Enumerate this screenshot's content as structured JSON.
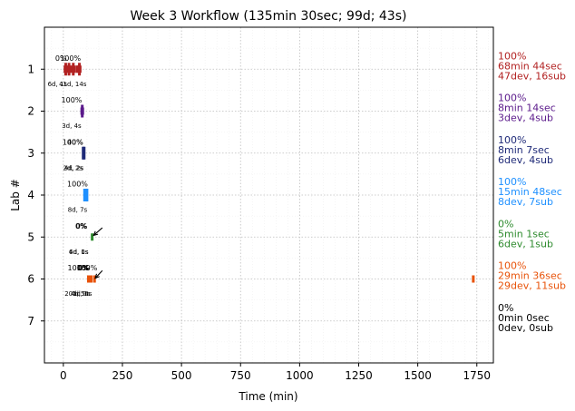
{
  "chart_data": {
    "type": "scatter",
    "title": "Week 3 Workflow (135min 30sec; 99d; 43s)",
    "xlabel": "Time (min)",
    "ylabel": "Lab #",
    "xlim": [
      -80,
      1820
    ],
    "ylim": [
      8,
      0
    ],
    "xticks": [
      0,
      250,
      500,
      750,
      1000,
      1250,
      1500,
      1750
    ],
    "xtick_labels": [
      "0",
      "250",
      "500",
      "750",
      "1000",
      "1250",
      "1500",
      "1750"
    ],
    "yticks": [
      1,
      2,
      3,
      4,
      5,
      6,
      7
    ],
    "ytick_labels": [
      "1",
      "2",
      "3",
      "4",
      "5",
      "6",
      "7"
    ],
    "grid": true,
    "labs": [
      {
        "lab": 1,
        "color": "#b22222",
        "pct": "100%",
        "time": "68min 44sec",
        "counts": "47dev, 16sub",
        "marks": [
          {
            "x": 7,
            "tall": false
          },
          {
            "x": 10,
            "tall": true
          },
          {
            "x": 14,
            "tall": false
          },
          {
            "x": 20,
            "tall": false
          },
          {
            "x": 24,
            "tall": true
          },
          {
            "x": 28,
            "tall": false
          },
          {
            "x": 36,
            "tall": false
          },
          {
            "x": 42,
            "tall": true
          },
          {
            "x": 45,
            "tall": false
          },
          {
            "x": 57,
            "tall": false
          },
          {
            "x": 62,
            "tall": false
          },
          {
            "x": 68,
            "tall": true
          },
          {
            "x": 71,
            "tall": false
          }
        ],
        "annotations": [
          {
            "text": "0%",
            "x": -10,
            "dy": -0.27,
            "kind": "pct"
          },
          {
            "text": "100%",
            "x": 30,
            "dy": -0.27,
            "kind": "pct"
          },
          {
            "text": "6d, 1s",
            "x": -25,
            "dy": 0.36,
            "kind": "small"
          },
          {
            "text": "41d, 14s",
            "x": 40,
            "dy": 0.36,
            "kind": "small"
          }
        ]
      },
      {
        "lab": 2,
        "color": "#5b1a8b",
        "pct": "100%",
        "time": "8min 14sec",
        "counts": "3dev, 4sub",
        "marks": [
          {
            "x": 78,
            "tall": false
          },
          {
            "x": 80,
            "tall": true
          },
          {
            "x": 82,
            "tall": false
          }
        ],
        "annotations": [
          {
            "text": "100%",
            "x": 35,
            "dy": -0.27,
            "kind": "pct"
          },
          {
            "text": "3d, 4s",
            "x": 35,
            "dy": 0.36,
            "kind": "small"
          }
        ]
      },
      {
        "lab": 3,
        "color": "#1f2a78",
        "pct": "100%",
        "time": "8min 7sec",
        "counts": "6dev, 4sub",
        "marks": [
          {
            "x": 84,
            "tall": true
          },
          {
            "x": 86,
            "tall": false
          },
          {
            "x": 88,
            "tall": true
          }
        ],
        "annotations": [
          {
            "text": "100%",
            "x": 40,
            "dy": -0.27,
            "kind": "pct"
          },
          {
            "text": "40%",
            "x": 50,
            "dy": -0.27,
            "kind": "pct"
          },
          {
            "text": "2d, 2s",
            "x": 40,
            "dy": 0.36,
            "kind": "small"
          },
          {
            "text": "4d, 2s",
            "x": 45,
            "dy": 0.36,
            "kind": "small"
          }
        ]
      },
      {
        "lab": 4,
        "color": "#1e90ff",
        "pct": "100%",
        "time": "15min 48sec",
        "counts": "8dev, 7sub",
        "marks": [
          {
            "x": 90,
            "tall": true
          },
          {
            "x": 93,
            "tall": false
          },
          {
            "x": 96,
            "tall": false
          },
          {
            "x": 100,
            "tall": true
          }
        ],
        "annotations": [
          {
            "text": "100%",
            "x": 60,
            "dy": -0.27,
            "kind": "pct"
          },
          {
            "text": "8d, 7s",
            "x": 60,
            "dy": 0.36,
            "kind": "small"
          }
        ]
      },
      {
        "lab": 5,
        "color": "#2e8b2e",
        "pct": "0%",
        "time": "5min 1sec",
        "counts": "6dev, 1sub",
        "marks": [
          {
            "x": 122,
            "tall": false
          }
        ],
        "annotations": [
          {
            "text": "0%",
            "x": 75,
            "dy": -0.27,
            "kind": "pct"
          },
          {
            "text": "0%",
            "x": 78,
            "dy": -0.27,
            "kind": "pct"
          },
          {
            "text": "6d, 1s",
            "x": 65,
            "dy": 0.36,
            "kind": "small"
          },
          {
            "text": "4d, 0s",
            "x": 65,
            "dy": 0.36,
            "kind": "small"
          }
        ]
      },
      {
        "lab": 6,
        "color": "#e8530a",
        "pct": "100%",
        "time": "29min 36sec",
        "counts": "29dev, 11sub",
        "marks": [
          {
            "x": 106,
            "tall": false
          },
          {
            "x": 109,
            "tall": false
          },
          {
            "x": 112,
            "tall": false
          },
          {
            "x": 115,
            "tall": false
          },
          {
            "x": 118,
            "tall": false
          },
          {
            "x": 132,
            "tall": false
          },
          {
            "x": 1735,
            "tall": false
          }
        ],
        "annotations": [
          {
            "text": "100%",
            "x": 62,
            "dy": -0.27,
            "kind": "pct"
          },
          {
            "text": "0%",
            "x": 84,
            "dy": -0.27,
            "kind": "pct"
          },
          {
            "text": "0%",
            "x": 88,
            "dy": -0.27,
            "kind": "pct"
          },
          {
            "text": "100%",
            "x": 100,
            "dy": -0.27,
            "kind": "pct"
          },
          {
            "text": "20d, 5s",
            "x": 55,
            "dy": 0.36,
            "kind": "small"
          },
          {
            "text": "4d, 0s",
            "x": 72,
            "dy": 0.36,
            "kind": "small"
          },
          {
            "text": "1d, 0s",
            "x": 80,
            "dy": 0.36,
            "kind": "small"
          }
        ]
      },
      {
        "lab": 7,
        "color": "#000000",
        "pct": "0%",
        "time": "0min 0sec",
        "counts": "0dev, 0sub",
        "marks": [],
        "annotations": []
      }
    ],
    "arrows": [
      {
        "lab": 5,
        "from_x": 165,
        "from_dy": -0.22,
        "to_x": 128,
        "to_dy": -0.04
      },
      {
        "lab": 6,
        "from_x": 165,
        "from_dy": -0.2,
        "to_x": 135,
        "to_dy": -0.02
      }
    ]
  }
}
